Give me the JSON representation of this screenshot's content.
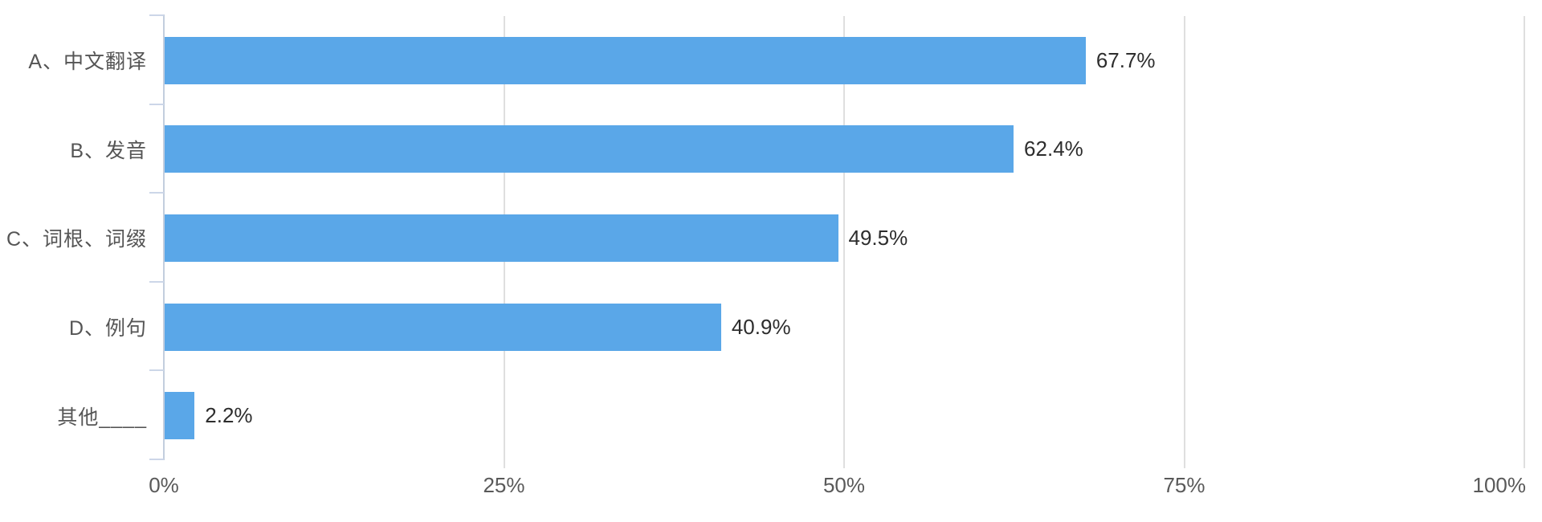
{
  "chart_data": {
    "type": "bar",
    "orientation": "horizontal",
    "title": "",
    "xlabel": "",
    "ylabel": "",
    "categories": [
      "A、中文翻译",
      "B、发音",
      "C、词根、词缀",
      "D、例句",
      "其他____"
    ],
    "values": [
      67.7,
      62.4,
      49.5,
      40.9,
      2.2
    ],
    "data_labels": [
      "67.7%",
      "62.4%",
      "49.5%",
      "40.9%",
      "2.2%"
    ],
    "x_ticks": [
      {
        "label": "0%",
        "value": 0
      },
      {
        "label": "25%",
        "value": 25
      },
      {
        "label": "50%",
        "value": 50
      },
      {
        "label": "75%",
        "value": 75
      },
      {
        "label": "100%",
        "value": 100
      }
    ],
    "xlim": [
      0,
      100
    ],
    "grid": true,
    "legend": "none"
  },
  "colors": {
    "bar": "#5AA7E8",
    "gridline": "#dfdfdf",
    "axis_line": "#c3cede",
    "axis_tick": "#ccd6e8",
    "category_text": "#555555",
    "value_text": "#2d2d2d",
    "xtick_text": "#595959",
    "background": "#ffffff"
  }
}
